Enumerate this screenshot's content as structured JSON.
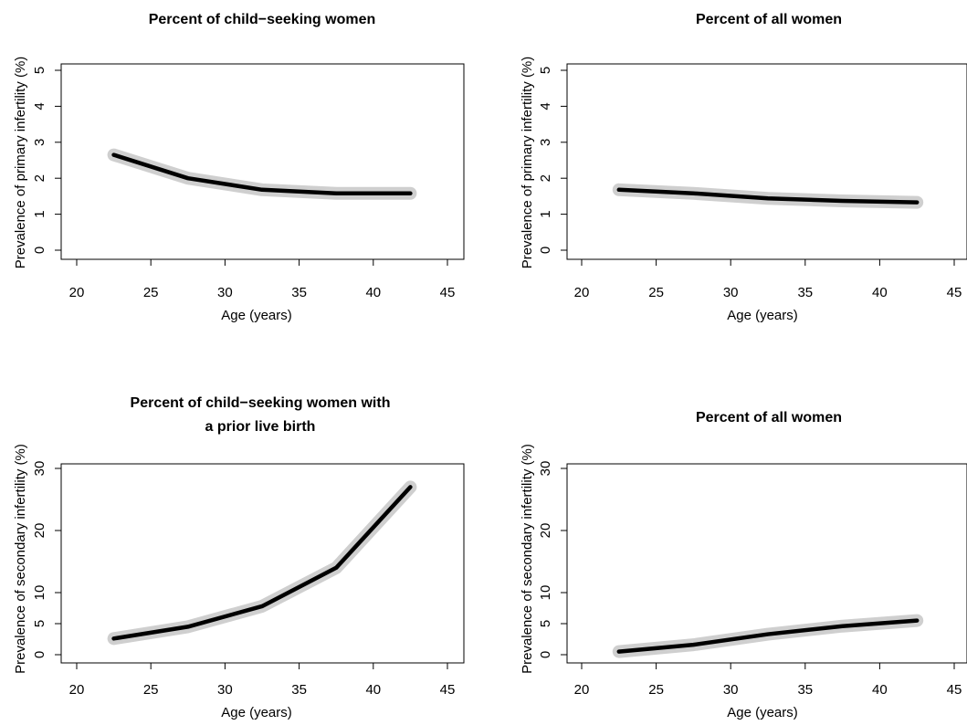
{
  "chart_data": [
    {
      "type": "line",
      "title": [
        "Percent of child−seeking women"
      ],
      "xlabel": "Age (years)",
      "ylabel": "Prevalence of primary infertility (%)",
      "xlim": [
        20,
        45
      ],
      "ylim": [
        0,
        5
      ],
      "xticks": [
        20,
        25,
        30,
        35,
        40,
        45
      ],
      "yticks": [
        0,
        1,
        2,
        3,
        4,
        5
      ],
      "x": [
        22.5,
        27.5,
        32.5,
        37.5,
        42.5
      ],
      "y": [
        2.65,
        2.0,
        1.68,
        1.58,
        1.58
      ]
    },
    {
      "type": "line",
      "title": [
        "Percent of all women"
      ],
      "xlabel": "Age (years)",
      "ylabel": "Prevalence of primary infertility (%)",
      "xlim": [
        20,
        45
      ],
      "ylim": [
        0,
        5
      ],
      "xticks": [
        20,
        25,
        30,
        35,
        40,
        45
      ],
      "yticks": [
        0,
        1,
        2,
        3,
        4,
        5
      ],
      "x": [
        22.5,
        27.5,
        32.5,
        37.5,
        42.5
      ],
      "y": [
        1.68,
        1.58,
        1.44,
        1.37,
        1.33
      ]
    },
    {
      "type": "line",
      "title": [
        "Percent of child−seeking women with",
        "a prior live birth"
      ],
      "xlabel": "Age (years)",
      "ylabel": "Prevalence of secondary infertility (%)",
      "xlim": [
        20,
        45
      ],
      "ylim": [
        0,
        30
      ],
      "xticks": [
        20,
        25,
        30,
        35,
        40,
        45
      ],
      "yticks": [
        0,
        5,
        10,
        20,
        30
      ],
      "x": [
        22.5,
        27.5,
        32.5,
        37.5,
        42.5
      ],
      "y": [
        2.6,
        4.5,
        7.8,
        14.0,
        27.0
      ]
    },
    {
      "type": "line",
      "title": [
        "Percent of all women"
      ],
      "xlabel": "Age (years)",
      "ylabel": "Prevalence of secondary infertility (%)",
      "xlim": [
        20,
        45
      ],
      "ylim": [
        0,
        30
      ],
      "xticks": [
        20,
        25,
        30,
        35,
        40,
        45
      ],
      "yticks": [
        0,
        5,
        10,
        20,
        30
      ],
      "x": [
        22.5,
        27.5,
        32.5,
        37.5,
        42.5
      ],
      "y": [
        0.5,
        1.6,
        3.3,
        4.6,
        5.5
      ]
    }
  ]
}
